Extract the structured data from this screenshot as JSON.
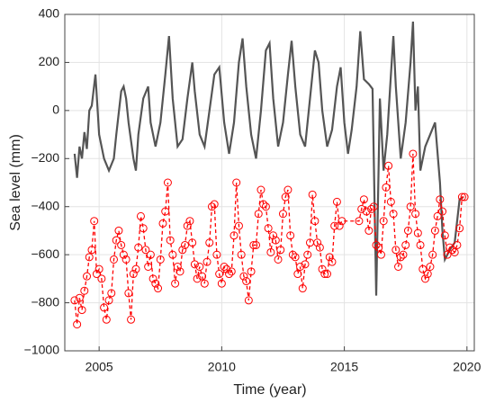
{
  "chart_data": {
    "type": "line",
    "xlabel": "Time (year)",
    "ylabel": "Sea level (mm)",
    "xlim": [
      2003.6,
      2020.3
    ],
    "xticks": [
      2005,
      2010,
      2015,
      2020
    ],
    "ylim": [
      -1000,
      400
    ],
    "yticks": [
      {
        "value": -1000,
        "label": "−1000"
      },
      {
        "value": -800,
        "label": "−800"
      },
      {
        "value": -600,
        "label": "−600"
      },
      {
        "value": -400,
        "label": "−400"
      },
      {
        "value": -200,
        "label": "−200"
      },
      0,
      200,
      400
    ],
    "grid": true,
    "series": [
      {
        "color": "#555555",
        "style": "solid",
        "x": [
          2004.0,
          2004.1,
          2004.2,
          2004.3,
          2004.4,
          2004.5,
          2004.6,
          2004.7,
          2004.85,
          2005.0,
          2005.2,
          2005.4,
          2005.6,
          2005.7,
          2005.9,
          2006.0,
          2006.1,
          2006.2,
          2006.4,
          2006.5,
          2006.6,
          2006.8,
          2007.0,
          2007.1,
          2007.3,
          2007.5,
          2007.7,
          2007.85,
          2008.0,
          2008.2,
          2008.4,
          2008.6,
          2008.8,
          2008.9,
          2009.1,
          2009.3,
          2009.5,
          2009.7,
          2009.9,
          2010.1,
          2010.3,
          2010.5,
          2010.7,
          2010.85,
          2011.0,
          2011.2,
          2011.4,
          2011.6,
          2011.8,
          2011.95,
          2012.1,
          2012.3,
          2012.5,
          2012.7,
          2012.85,
          2013.0,
          2013.2,
          2013.4,
          2013.6,
          2013.8,
          2013.95,
          2014.1,
          2014.3,
          2014.5,
          2014.7,
          2014.85,
          2015.0,
          2015.15,
          2015.3,
          2015.5,
          2015.65,
          2015.8,
          2016.0,
          2016.15,
          2016.3,
          2016.45,
          2016.6,
          2016.75,
          2016.9,
          2017.0,
          2017.1,
          2017.3,
          2017.5,
          2017.7,
          2017.8,
          2017.9,
          2018.0,
          2018.1,
          2018.3,
          2018.5,
          2018.7,
          2018.9,
          2019.0,
          2019.1,
          2019.3,
          2019.5,
          2019.7,
          2019.85
        ],
        "values": [
          -180,
          -280,
          -150,
          -200,
          -90,
          -160,
          0,
          20,
          150,
          -100,
          -200,
          -250,
          -200,
          -100,
          80,
          100,
          50,
          -50,
          -200,
          -250,
          -100,
          50,
          100,
          -50,
          -150,
          -50,
          150,
          310,
          50,
          -150,
          -120,
          50,
          200,
          80,
          -100,
          -150,
          0,
          150,
          180,
          -50,
          -180,
          -50,
          200,
          300,
          100,
          -100,
          -200,
          0,
          250,
          280,
          50,
          -150,
          -50,
          150,
          290,
          100,
          -100,
          -150,
          50,
          250,
          200,
          0,
          -150,
          -80,
          100,
          180,
          -50,
          -180,
          -80,
          100,
          330,
          130,
          110,
          90,
          -770,
          50,
          -250,
          -100,
          150,
          310,
          100,
          -200,
          -50,
          200,
          370,
          0,
          100,
          -250,
          -150,
          -100,
          -50,
          -300,
          -500,
          -620,
          -580,
          -550,
          -370,
          -360
        ]
      },
      {
        "color": "#ff0000",
        "style": "dashed",
        "marker": "circle",
        "x": [
          2004.0,
          2004.1,
          2004.2,
          2004.3,
          2004.4,
          2004.5,
          2004.6,
          2004.7,
          2004.8,
          2004.9,
          2005.0,
          2005.1,
          2005.2,
          2005.3,
          2005.4,
          2005.5,
          2005.6,
          2005.7,
          2005.8,
          2005.9,
          2006.0,
          2006.1,
          2006.2,
          2006.3,
          2006.4,
          2006.5,
          2006.6,
          2006.7,
          2006.8,
          2006.9,
          2007.0,
          2007.1,
          2007.2,
          2007.3,
          2007.4,
          2007.5,
          2007.6,
          2007.7,
          2007.8,
          2007.9,
          2008.0,
          2008.1,
          2008.2,
          2008.3,
          2008.4,
          2008.5,
          2008.6,
          2008.7,
          2008.8,
          2008.9,
          2009.0,
          2009.1,
          2009.2,
          2009.3,
          2009.4,
          2009.5,
          2009.6,
          2009.7,
          2009.8,
          2009.9,
          2010.0,
          2010.1,
          2010.2,
          2010.3,
          2010.4,
          2010.5,
          2010.6,
          2010.7,
          2010.8,
          2010.9,
          2011.0,
          2011.1,
          2011.2,
          2011.3,
          2011.4,
          2011.5,
          2011.6,
          2011.7,
          2011.8,
          2011.9,
          2012.0,
          2012.1,
          2012.2,
          2012.3,
          2012.4,
          2012.5,
          2012.6,
          2012.7,
          2012.8,
          2012.9,
          2013.0,
          2013.1,
          2013.2,
          2013.3,
          2013.4,
          2013.5,
          2013.6,
          2013.7,
          2013.8,
          2013.9,
          2014.0,
          2014.1,
          2014.2,
          2014.3,
          2014.4,
          2014.5,
          2014.6,
          2014.7,
          2014.8,
          2014.9,
          2015.6,
          2015.7,
          2015.8,
          2015.9,
          2016.0,
          2016.1,
          2016.2,
          2016.3,
          2016.4,
          2016.5,
          2016.6,
          2016.7,
          2016.8,
          2016.9,
          2017.0,
          2017.1,
          2017.2,
          2017.3,
          2017.4,
          2017.5,
          2017.6,
          2017.7,
          2017.8,
          2017.9,
          2018.0,
          2018.1,
          2018.2,
          2018.3,
          2018.4,
          2018.5,
          2018.6,
          2018.7,
          2018.8,
          2018.9,
          2019.0,
          2019.1,
          2019.2,
          2019.3,
          2019.4,
          2019.5,
          2019.6,
          2019.7,
          2019.8,
          2019.9
        ],
        "values": [
          -790,
          -890,
          -780,
          -830,
          -750,
          -690,
          -610,
          -580,
          -460,
          -680,
          -660,
          -700,
          -820,
          -870,
          -790,
          -760,
          -620,
          -540,
          -500,
          -560,
          -600,
          -620,
          -760,
          -870,
          -680,
          -660,
          -570,
          -440,
          -490,
          -580,
          -650,
          -600,
          -700,
          -720,
          -740,
          -620,
          -470,
          -420,
          -300,
          -540,
          -600,
          -720,
          -650,
          -670,
          -580,
          -560,
          -480,
          -460,
          -550,
          -640,
          -700,
          -650,
          -690,
          -720,
          -630,
          -550,
          -400,
          -390,
          -600,
          -680,
          -720,
          -650,
          -660,
          -680,
          -670,
          -520,
          -300,
          -480,
          -600,
          -690,
          -710,
          -790,
          -670,
          -560,
          -560,
          -430,
          -330,
          -390,
          -400,
          -490,
          -590,
          -520,
          -540,
          -620,
          -580,
          -430,
          -360,
          -330,
          -520,
          -600,
          -610,
          -680,
          -650,
          -740,
          -640,
          -600,
          -550,
          -350,
          -460,
          -550,
          -570,
          -660,
          -680,
          -680,
          -610,
          -630,
          -480,
          -380,
          -480,
          -460,
          -460,
          -410,
          -370,
          -420,
          -500,
          -410,
          -400,
          -560,
          -570,
          -600,
          -460,
          -320,
          -230,
          -380,
          -430,
          -580,
          -650,
          -610,
          -600,
          -560,
          -500,
          -400,
          -180,
          -430,
          -510,
          -560,
          -660,
          -700,
          -680,
          -650,
          -600,
          -500,
          -440,
          -370,
          -420,
          -520,
          -600,
          -570,
          -580,
          -590,
          -560,
          -490,
          -360,
          -360
        ]
      }
    ]
  }
}
